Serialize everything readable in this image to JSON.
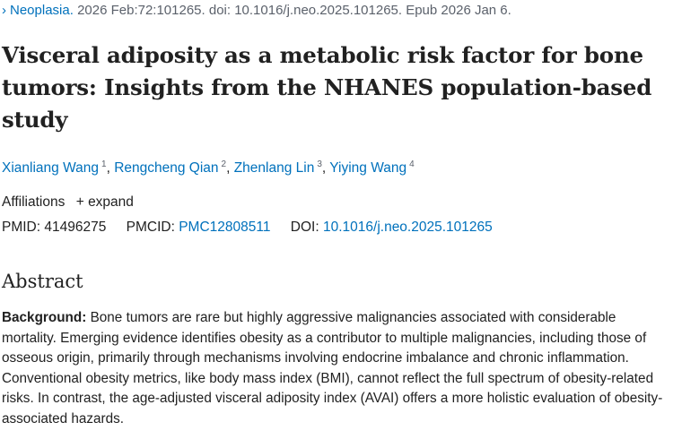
{
  "citation": {
    "journal": "Neoplasia.",
    "details": "2026 Feb:72:101265. doi: 10.1016/j.neo.2025.101265. Epub 2026 Jan 6."
  },
  "title": "Visceral adiposity as a metabolic risk factor for bone tumors: Insights from the NHANES population-based study",
  "authors": [
    {
      "name": "Xianliang Wang",
      "aff": "1"
    },
    {
      "name": "Rengcheng Qian",
      "aff": "2"
    },
    {
      "name": "Zhenlang Lin",
      "aff": "3"
    },
    {
      "name": "Yiying Wang",
      "aff": "4"
    }
  ],
  "affiliations": {
    "label": "Affiliations",
    "expand": "expand"
  },
  "ids": {
    "pmid_label": "PMID:",
    "pmid": "41496275",
    "pmcid_label": "PMCID:",
    "pmcid": "PMC12808511",
    "doi_label": "DOI:",
    "doi": "10.1016/j.neo.2025.101265"
  },
  "abstract": {
    "heading": "Abstract",
    "background_label": "Background:",
    "background_text": "Bone tumors are rare but highly aggressive malignancies associated with considerable mortality. Emerging evidence identifies obesity as a contributor to multiple malignancies, including those of osseous origin, primarily through mechanisms involving endocrine imbalance and chronic inflammation. Conventional obesity metrics, like body mass index (BMI), cannot reflect the full spectrum of obesity-related risks. In contrast, the age-adjusted visceral adiposity index (AVAI) offers a more holistic evaluation of obesity-associated hazards."
  }
}
